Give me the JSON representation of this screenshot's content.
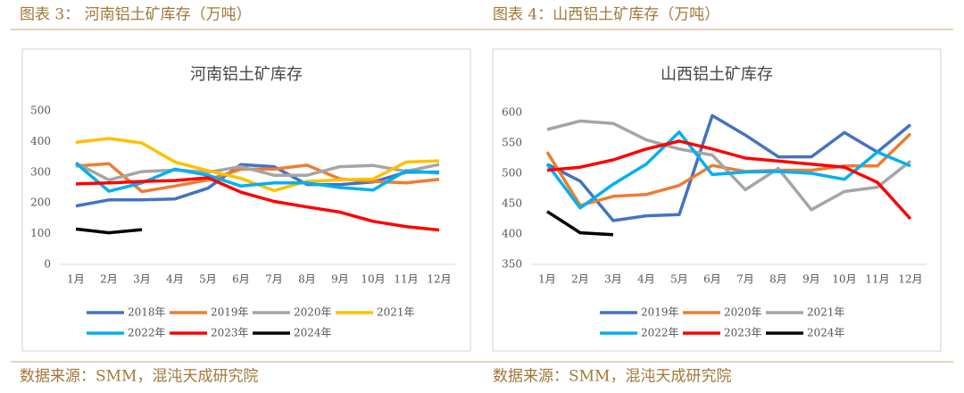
{
  "chart_data": [
    {
      "type": "line",
      "figure_label": "图表 3：  河南铝土矿库存（万吨）",
      "title": "河南铝土矿库存",
      "source": "数据来源：SMM，混沌天成研究院",
      "categories": [
        "1月",
        "2月",
        "3月",
        "4月",
        "5月",
        "6月",
        "7月",
        "8月",
        "9月",
        "10月",
        "11月",
        "12月"
      ],
      "ylim": [
        0,
        500
      ],
      "yticks": [
        0,
        100,
        200,
        300,
        400,
        500
      ],
      "series": [
        {
          "name": "2018年",
          "color": "#4472c4",
          "values": [
            190,
            210,
            210,
            213,
            248,
            325,
            318,
            260,
            260,
            268,
            300,
            300
          ]
        },
        {
          "name": "2019年",
          "color": "#ed7d31",
          "values": [
            320,
            328,
            237,
            255,
            275,
            310,
            310,
            323,
            278,
            270,
            265,
            277
          ]
        },
        {
          "name": "2020年",
          "color": "#a5a5a5",
          "values": [
            330,
            275,
            302,
            307,
            300,
            318,
            290,
            290,
            318,
            322,
            303,
            325
          ]
        },
        {
          "name": "2021年",
          "color": "#ffc000",
          "values": [
            397,
            410,
            395,
            333,
            305,
            280,
            240,
            270,
            275,
            278,
            333,
            337
          ]
        },
        {
          "name": "2022年",
          "color": "#00b0f0",
          "values": [
            330,
            238,
            265,
            310,
            290,
            255,
            265,
            265,
            250,
            242,
            305,
            297
          ]
        },
        {
          "name": "2023年",
          "color": "#ff0000",
          "values": [
            262,
            265,
            270,
            273,
            282,
            235,
            205,
            187,
            170,
            140,
            123,
            112
          ]
        },
        {
          "name": "2024年",
          "color": "#000000",
          "values": [
            115,
            103,
            113,
            null,
            null,
            null,
            null,
            null,
            null,
            null,
            null,
            null
          ]
        }
      ]
    },
    {
      "type": "line",
      "figure_label": "图表 4：山西铝土矿库存（万吨）",
      "title": "山西铝土矿库存",
      "source": "数据来源：SMM，混沌天成研究院",
      "categories": [
        "1月",
        "2月",
        "3月",
        "4月",
        "5月",
        "6月",
        "7月",
        "8月",
        "9月",
        "10月",
        "11月",
        "12月"
      ],
      "ylim": [
        350,
        600
      ],
      "yticks": [
        350,
        400,
        450,
        500,
        550,
        600
      ],
      "series": [
        {
          "name": "2019年",
          "color": "#4472c4",
          "values": [
            515,
            487,
            422,
            430,
            432,
            595,
            563,
            527,
            527,
            567,
            535,
            580
          ]
        },
        {
          "name": "2020年",
          "color": "#ed7d31",
          "values": [
            535,
            447,
            462,
            465,
            480,
            513,
            503,
            505,
            505,
            512,
            512,
            565
          ]
        },
        {
          "name": "2021年",
          "color": "#a5a5a5",
          "values": [
            572,
            586,
            582,
            555,
            540,
            530,
            473,
            508,
            440,
            470,
            477,
            520
          ]
        },
        {
          "name": "2022年",
          "color": "#00b0f0",
          "values": [
            515,
            443,
            482,
            515,
            568,
            498,
            502,
            503,
            500,
            490,
            535,
            512
          ]
        },
        {
          "name": "2023年",
          "color": "#ff0000",
          "values": [
            505,
            510,
            522,
            540,
            553,
            540,
            525,
            520,
            515,
            510,
            485,
            425
          ]
        },
        {
          "name": "2024年",
          "color": "#000000",
          "values": [
            437,
            402,
            399,
            null,
            null,
            null,
            null,
            null,
            null,
            null,
            null,
            null
          ]
        }
      ]
    }
  ]
}
